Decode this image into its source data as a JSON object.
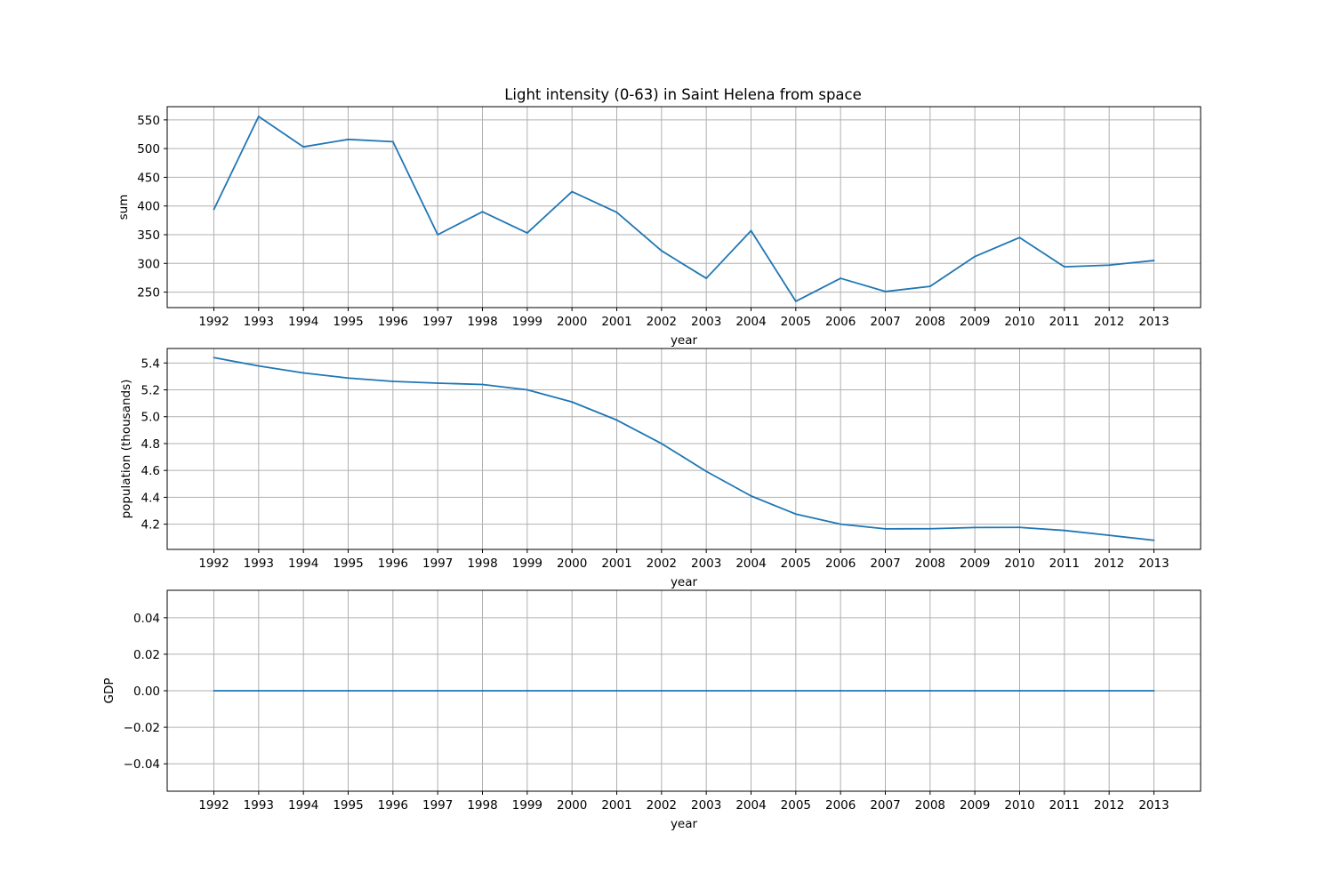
{
  "chart_data": [
    {
      "type": "line",
      "title": "Light intensity (0-63) in Saint Helena from space",
      "xlabel": "year",
      "ylabel": "sum",
      "categories": [
        "1992",
        "1993",
        "1994",
        "1995",
        "1996",
        "1997",
        "1998",
        "1999",
        "2000",
        "2001",
        "2002",
        "2003",
        "2004",
        "2005",
        "2006",
        "2007",
        "2008",
        "2009",
        "2010",
        "2011",
        "2012",
        "2013"
      ],
      "values": [
        394,
        556,
        503,
        516,
        512,
        350,
        390,
        353,
        425,
        389,
        322,
        274,
        357,
        234,
        274,
        251,
        260,
        312,
        345,
        294,
        297,
        305
      ],
      "yticks": [
        250,
        300,
        350,
        400,
        450,
        500,
        550
      ],
      "ytick_labels": [
        "250",
        "300",
        "350",
        "400",
        "450",
        "500",
        "550"
      ],
      "ylim": [
        223,
        573
      ],
      "grid": true,
      "color": "#1f77b4"
    },
    {
      "type": "line",
      "title": "",
      "xlabel": "year",
      "ylabel": "population (thousands)",
      "categories": [
        "1992",
        "1993",
        "1994",
        "1995",
        "1996",
        "1997",
        "1998",
        "1999",
        "2000",
        "2001",
        "2002",
        "2003",
        "2004",
        "2005",
        "2006",
        "2007",
        "2008",
        "2009",
        "2010",
        "2011",
        "2012",
        "2013"
      ],
      "values": [
        5.44,
        5.378,
        5.326,
        5.288,
        5.263,
        5.25,
        5.24,
        5.2,
        5.11,
        4.975,
        4.8,
        4.593,
        4.41,
        4.275,
        4.2,
        4.165,
        4.166,
        4.175,
        4.176,
        4.153,
        4.117,
        4.08
      ],
      "yticks": [
        4.2,
        4.4,
        4.6,
        4.8,
        5.0,
        5.2,
        5.4
      ],
      "ytick_labels": [
        "4.2",
        "4.4",
        "4.6",
        "4.8",
        "5.0",
        "5.2",
        "5.4"
      ],
      "ylim": [
        4.012,
        5.508
      ],
      "grid": true,
      "color": "#1f77b4"
    },
    {
      "type": "line",
      "title": "",
      "xlabel": "year",
      "ylabel": "GDP",
      "categories": [
        "1992",
        "1993",
        "1994",
        "1995",
        "1996",
        "1997",
        "1998",
        "1999",
        "2000",
        "2001",
        "2002",
        "2003",
        "2004",
        "2005",
        "2006",
        "2007",
        "2008",
        "2009",
        "2010",
        "2011",
        "2012",
        "2013"
      ],
      "values": [
        0,
        0,
        0,
        0,
        0,
        0,
        0,
        0,
        0,
        0,
        0,
        0,
        0,
        0,
        0,
        0,
        0,
        0,
        0,
        0,
        0,
        0
      ],
      "yticks": [
        -0.04,
        -0.02,
        0.0,
        0.02,
        0.04
      ],
      "ytick_labels": [
        "−0.04",
        "−0.02",
        "0.00",
        "0.02",
        "0.04"
      ],
      "ylim": [
        -0.055,
        0.055
      ],
      "grid": true,
      "color": "#1f77b4"
    }
  ]
}
